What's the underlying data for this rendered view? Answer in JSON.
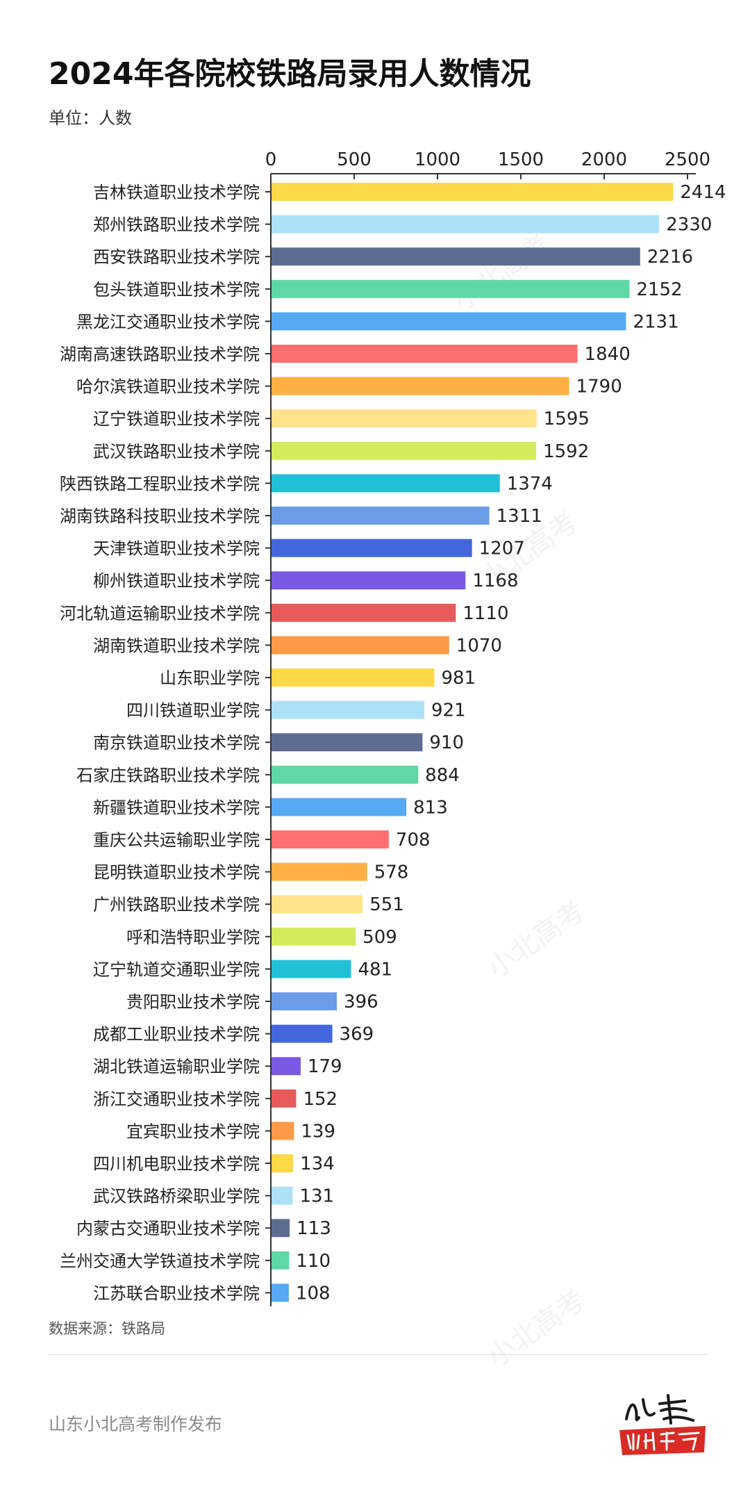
{
  "title": "2024年各院校铁路局录用人数情况",
  "unit_label": "单位：人数",
  "source_label": "数据来源：铁路局",
  "publisher": "山东小北高考制作发布",
  "logo": {
    "brand": "小北高考",
    "script": "小东"
  },
  "chart_data": {
    "type": "bar",
    "orientation": "horizontal",
    "title": "2024年各院校铁路局录用人数情况",
    "xlim": [
      0,
      2500
    ],
    "ticks": [
      0,
      500,
      1000,
      1500,
      2000,
      2500
    ],
    "axis_position": "top",
    "grid": false,
    "categories": [
      "吉林铁道职业技术学院",
      "郑州铁路职业技术学院",
      "西安铁路职业技术学院",
      "包头铁道职业技术学院",
      "黑龙江交通职业技术学院",
      "湖南高速铁路职业技术学院",
      "哈尔滨铁道职业技术学院",
      "辽宁铁道职业技术学院",
      "武汉铁路职业技术学院",
      "陕西铁路工程职业技术学院",
      "湖南铁路科技职业技术学院",
      "天津铁道职业技术学院",
      "柳州铁道职业技术学院",
      "河北轨道运输职业技术学院",
      "湖南铁道职业技术学院",
      "山东职业学院",
      "四川铁道职业学院",
      "南京铁道职业技术学院",
      "石家庄铁路职业技术学院",
      "新疆铁道职业技术学院",
      "重庆公共运输职业学院",
      "昆明铁道职业技术学院",
      "广州铁路职业技术学院",
      "呼和浩特职业学院",
      "辽宁轨道交通职业学院",
      "贵阳职业技术学院",
      "成都工业职业技术学院",
      "湖北铁道运输职业学院",
      "浙江交通职业技术学院",
      "宜宾职业技术学院",
      "四川机电职业技术学院",
      "武汉铁路桥梁职业学院",
      "内蒙古交通职业技术学院",
      "兰州交通大学铁道技术学院",
      "江苏联合职业技术学院"
    ],
    "values": [
      2414,
      2330,
      2216,
      2152,
      2131,
      1840,
      1790,
      1595,
      1592,
      1374,
      1311,
      1207,
      1168,
      1110,
      1070,
      981,
      921,
      910,
      884,
      813,
      708,
      578,
      551,
      509,
      481,
      396,
      369,
      179,
      152,
      139,
      134,
      131,
      113,
      110,
      108
    ],
    "palette": [
      "#FDD94A",
      "#AEE0F8",
      "#5D6D92",
      "#5FD8A6",
      "#56A9F2",
      "#FF7070",
      "#FFB043",
      "#FFE38C",
      "#D3EB5D",
      "#21C0D6",
      "#6B9CE6",
      "#4466DD",
      "#7A5AE3",
      "#E85A5A",
      "#FF9A48"
    ]
  }
}
